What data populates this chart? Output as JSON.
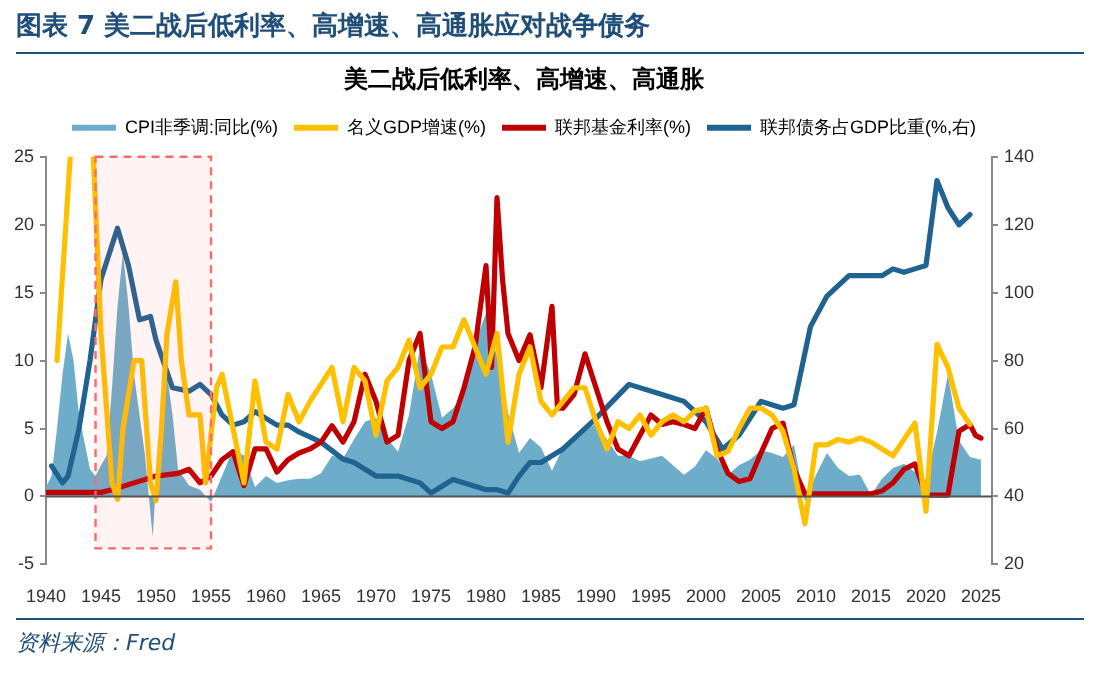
{
  "chart_data": {
    "type": "line",
    "title": "美二战后低利率、高增速、高通胀",
    "annotations": [
      "图表 7  美二战后低利率、高增速、高通胀应对战争债务",
      "资料来源：Fred"
    ],
    "xlim": [
      1940,
      2026
    ],
    "xticks": [
      1940,
      1945,
      1950,
      1955,
      1960,
      1965,
      1970,
      1975,
      1980,
      1985,
      1990,
      1995,
      2000,
      2005,
      2010,
      2015,
      2020,
      2025
    ],
    "ylim": [
      -5,
      25
    ],
    "yticks": [
      -5,
      0,
      5,
      10,
      15,
      20,
      25
    ],
    "y2lim": [
      20,
      140
    ],
    "y2ticks": [
      20,
      40,
      60,
      80,
      100,
      120,
      140
    ],
    "grid": false,
    "legend": "top",
    "ref_lines": [
      {
        "axis": "y",
        "value": 0,
        "color": "#555555"
      }
    ],
    "bands": [
      {
        "axis": "x",
        "from": 1944.5,
        "to": 1955,
        "color": "#ff6b6b"
      }
    ],
    "series": [
      {
        "name": "CPI非季调:同比(%)",
        "type": "area",
        "color": "#6eadc9",
        "x": [
          1940,
          1940.5,
          1941,
          1941.5,
          1942,
          1942.5,
          1943,
          1943.5,
          1944,
          1944.5,
          1945,
          1945.5,
          1946,
          1946.5,
          1947,
          1947.5,
          1948,
          1948.5,
          1949,
          1949.7,
          1950,
          1950.5,
          1951,
          1951.5,
          1952,
          1953,
          1954,
          1955,
          1956,
          1957,
          1958,
          1959,
          1960,
          1961,
          1962,
          1963,
          1964,
          1965,
          1966,
          1967,
          1968,
          1969,
          1970,
          1971,
          1972,
          1973,
          1974,
          1975,
          1976,
          1977,
          1978,
          1979,
          1980,
          1981,
          1982,
          1983,
          1984,
          1985,
          1986,
          1987,
          1988,
          1989,
          1990,
          1991,
          1992,
          1993,
          1994,
          1995,
          1996,
          1997,
          1998,
          1999,
          2000,
          2001,
          2002,
          2003,
          2004,
          2005,
          2006,
          2007,
          2008,
          2009,
          2010,
          2011,
          2012,
          2013,
          2014,
          2015,
          2016,
          2017,
          2018,
          2019,
          2020,
          2021,
          2022,
          2023,
          2024,
          2025
        ],
        "values": [
          0.7,
          1.5,
          5,
          9,
          12,
          10,
          6,
          4,
          2,
          1.5,
          2.3,
          3,
          8,
          14,
          18,
          14,
          9,
          6,
          3,
          -3,
          1,
          4,
          9,
          6,
          2,
          0.8,
          0.5,
          -0.4,
          1.5,
          3.5,
          3,
          0.7,
          1.5,
          1,
          1.2,
          1.3,
          1.3,
          1.7,
          3,
          2.8,
          4.2,
          5.5,
          5.8,
          4.3,
          3.3,
          6,
          11,
          9,
          5.8,
          6.5,
          7.6,
          11.3,
          13.5,
          10.3,
          6.2,
          3.2,
          4.3,
          3.6,
          1.9,
          3.6,
          4.1,
          4.8,
          5.4,
          4.2,
          3,
          3,
          2.6,
          2.8,
          3,
          2.3,
          1.6,
          2.2,
          3.4,
          2.8,
          1.6,
          2.3,
          2.7,
          3.4,
          3.2,
          2.9,
          3.8,
          -0.4,
          1.6,
          3.2,
          2.1,
          1.5,
          1.6,
          0.1,
          1.3,
          2.1,
          2.4,
          1.8,
          1.2,
          4.7,
          9,
          4.1,
          2.9,
          2.7
        ]
      },
      {
        "name": "名义GDP增速(%)",
        "type": "line",
        "color": "#ffc000",
        "x": [
          1941,
          1942.2,
          1943,
          1944.3,
          1945,
          1946,
          1946.5,
          1947,
          1948,
          1948.7,
          1949.5,
          1950,
          1950.5,
          1951,
          1951.8,
          1952.3,
          1953,
          1954,
          1954.5,
          1955.5,
          1956,
          1957,
          1958,
          1959,
          1960,
          1961,
          1962,
          1963,
          1964,
          1966,
          1967,
          1968,
          1969,
          1970,
          1971,
          1972,
          1973,
          1974,
          1975,
          1976,
          1977,
          1978,
          1979,
          1980,
          1981,
          1982,
          1983,
          1984,
          1985,
          1986,
          1987,
          1988,
          1989,
          1990,
          1991,
          1992,
          1993,
          1994,
          1995,
          1996,
          1997,
          1998,
          1999,
          2000,
          2001,
          2002,
          2003,
          2004,
          2005,
          2006,
          2007,
          2008,
          2009,
          2010,
          2011,
          2012,
          2013,
          2014,
          2015,
          2016,
          2017,
          2018,
          2019,
          2020,
          2021,
          2022,
          2023,
          2024
        ],
        "values": [
          10,
          25,
          null,
          25,
          12,
          1,
          -0.2,
          5,
          10,
          10,
          1,
          -0.3,
          5,
          12,
          15.8,
          10,
          6,
          6,
          1,
          8,
          9,
          5,
          1,
          8.5,
          4,
          3.5,
          7.5,
          5.5,
          7,
          9.5,
          5.5,
          9.5,
          8.5,
          4.5,
          8.5,
          9.5,
          11.5,
          8,
          9,
          11,
          11,
          13,
          11,
          9,
          12,
          4,
          9,
          11,
          7,
          6,
          7,
          8,
          8,
          5.5,
          3.5,
          5.5,
          5,
          6,
          4.5,
          5.5,
          6,
          5.5,
          6.3,
          6.5,
          3,
          3.3,
          5,
          6.5,
          6.5,
          6,
          4.8,
          2,
          -2,
          3.8,
          3.8,
          4.2,
          4,
          4.3,
          4,
          3.5,
          3,
          4.2,
          5.4,
          -1.1,
          11.2,
          9.5,
          6.5,
          5.3
        ]
      },
      {
        "name": "联邦基金利率(%)",
        "type": "line",
        "color": "#c00000",
        "x": [
          1940,
          1945,
          1946,
          1948,
          1950,
          1952,
          1953,
          1954,
          1955,
          1956,
          1957,
          1958,
          1959,
          1960,
          1961,
          1962,
          1963,
          1964,
          1965,
          1966,
          1967,
          1968,
          1969,
          1970,
          1971,
          1972,
          1973,
          1974,
          1975,
          1976,
          1977,
          1978,
          1979,
          1980,
          1980.5,
          1981,
          1981.5,
          1982,
          1983,
          1984,
          1985,
          1986,
          1986.5,
          1987,
          1988,
          1989,
          1990,
          1991,
          1992,
          1993,
          1994,
          1995,
          1996,
          1997,
          1998,
          1999,
          2000,
          2001,
          2002,
          2003,
          2004,
          2005,
          2006,
          2007,
          2008,
          2009,
          2015,
          2016,
          2017,
          2018,
          2019,
          2020,
          2022,
          2022.5,
          2023,
          2024,
          2024.5,
          2025
        ],
        "values": [
          0.3,
          0.3,
          0.5,
          1,
          1.5,
          1.7,
          2,
          1,
          1.5,
          2.7,
          3.3,
          0.8,
          3.5,
          3.5,
          1.8,
          2.7,
          3.2,
          3.5,
          4,
          5.2,
          4,
          5.5,
          9,
          7,
          4,
          4.5,
          10,
          12,
          5.5,
          5,
          5.5,
          8,
          11,
          17,
          9.5,
          22,
          16,
          12,
          10,
          11.9,
          8,
          14,
          6.5,
          6.5,
          7.5,
          10.5,
          8,
          5.5,
          3.5,
          3,
          4.5,
          6,
          5.3,
          5.5,
          5.3,
          5,
          6.5,
          3.5,
          1.7,
          1.1,
          1.3,
          3.2,
          5,
          5.4,
          2,
          0.2,
          0.2,
          0.4,
          1,
          2,
          2.4,
          0.1,
          0.1,
          2.5,
          4.8,
          5.3,
          4.5,
          4.3
        ]
      },
      {
        "name": "联邦债务占GDP比重(%,右)",
        "type": "line",
        "axis": "y2",
        "color": "#1f6391",
        "x": [
          1940.5,
          1941.5,
          1942,
          1943,
          1944,
          1945,
          1946.5,
          1947.5,
          1948.5,
          1949.5,
          1950,
          1951.5,
          1953,
          1954,
          1955,
          1956,
          1957,
          1958,
          1959,
          1960,
          1961,
          1962,
          1963,
          1965,
          1967,
          1968,
          1970,
          1972,
          1974,
          1975,
          1976,
          1977,
          1979,
          1980,
          1981,
          1982,
          1983,
          1984,
          1985,
          1987,
          1990,
          1993,
          1996,
          1998,
          2000,
          2001.5,
          2003,
          2005,
          2007,
          2008,
          2009.5,
          2011,
          2013,
          2016,
          2017,
          2018,
          2019,
          2020,
          2021,
          2022,
          2023,
          2024
        ],
        "values": [
          49,
          44,
          46,
          60,
          80,
          104,
          119,
          108,
          92,
          93,
          86,
          72,
          71,
          73,
          70,
          64,
          61,
          62,
          65,
          63,
          61,
          61,
          59,
          56,
          51,
          50,
          46,
          46,
          44,
          41,
          43,
          45,
          43,
          42,
          42,
          41,
          46,
          50,
          50,
          54,
          63,
          73,
          70,
          68,
          62,
          54,
          58,
          68,
          66,
          67,
          90,
          99,
          105,
          105,
          107,
          106,
          107,
          108,
          133,
          125,
          120,
          123
        ]
      }
    ]
  }
}
